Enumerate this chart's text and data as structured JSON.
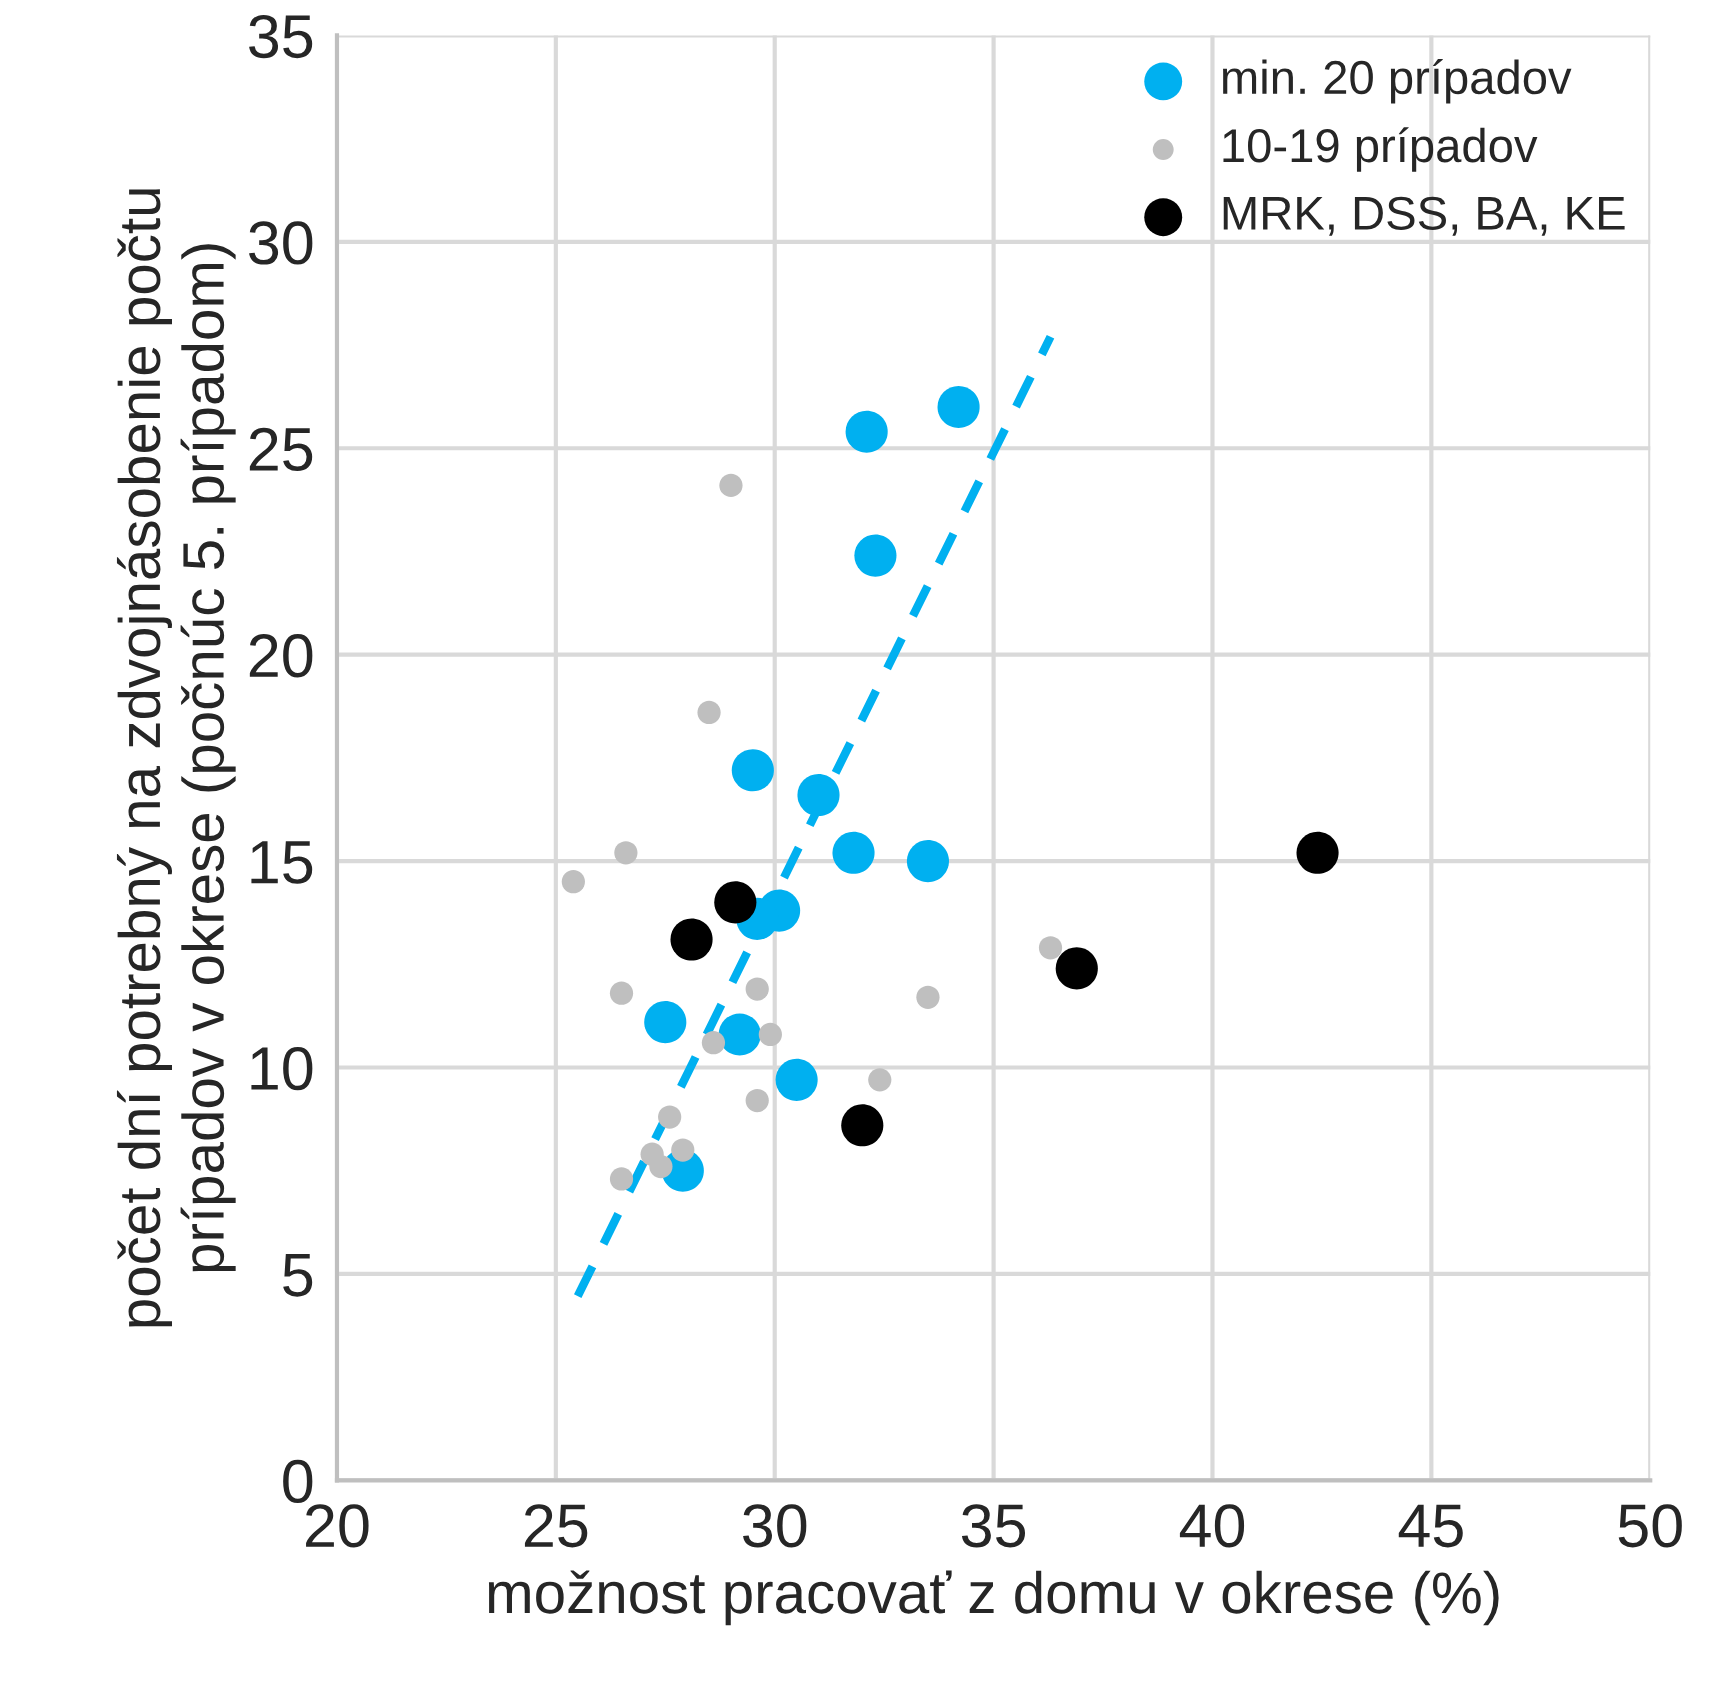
{
  "chart_data": {
    "type": "scatter",
    "xlabel": "možnost pracovať z domu v okrese (%)",
    "ylabel": "počet dní potrebný na zdvojnásobenie počtu\nprípadov v okrese (počnúc 5. prípadom)",
    "xlim": [
      20,
      50
    ],
    "xticks": [
      20,
      25,
      30,
      35,
      40,
      45,
      50
    ],
    "ylim": [
      0,
      35
    ],
    "yticks": [
      0,
      5,
      10,
      15,
      20,
      25,
      30,
      35
    ],
    "grid": true,
    "legend": "top right",
    "marker": "circle",
    "series": [
      {
        "name": "min. 20 prípadov",
        "color": "#00b0f0",
        "x": [
          32.1,
          34.2,
          32.3,
          29.5,
          31.0,
          31.8,
          33.5,
          30.1,
          29.6,
          27.5,
          29.2,
          30.5,
          27.9
        ],
        "values": [
          25.4,
          26.0,
          22.4,
          17.2,
          16.6,
          15.2,
          15.0,
          13.8,
          13.6,
          11.1,
          10.8,
          9.7,
          7.5
        ]
      },
      {
        "name": "10-19 prípadov",
        "color": "#bfbfbf",
        "x": [
          29.0,
          28.5,
          25.4,
          26.6,
          26.5,
          29.6,
          33.5,
          36.3,
          28.6,
          29.9,
          29.6,
          32.4,
          27.6,
          27.2,
          27.4,
          27.9,
          26.5
        ],
        "values": [
          24.1,
          18.6,
          14.5,
          15.2,
          11.8,
          11.9,
          11.7,
          12.9,
          10.6,
          10.8,
          9.2,
          9.7,
          8.8,
          7.9,
          7.6,
          8.0,
          7.3
        ]
      },
      {
        "name": "MRK, DSS, BA, KE",
        "color": "#000000",
        "x": [
          29.1,
          28.1,
          32.0,
          36.9,
          42.4
        ],
        "values": [
          14.0,
          13.1,
          8.6,
          12.4,
          15.2
        ]
      },
      {
        "type": "line",
        "color": "#00b0f0",
        "line_style": "dashed",
        "marker": "none",
        "x": [
          25.5,
          36.3
        ],
        "values": [
          4.46,
          27.7
        ]
      }
    ]
  }
}
